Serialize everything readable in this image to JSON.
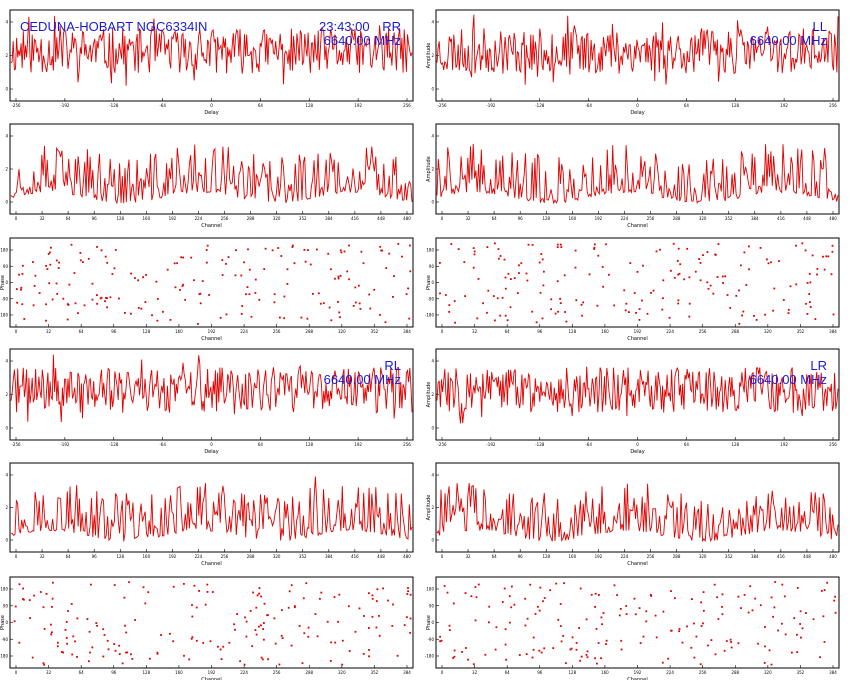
{
  "window": {
    "title_left": "CEDUNA-HOBART NGC6334IN",
    "time": "23:43:00"
  },
  "colors": {
    "trace": "#e00000",
    "annotation": "#1a1ad6",
    "axes": "#000000"
  },
  "chart_data": [
    {
      "id": "rr-delay",
      "type": "line",
      "pol": "RR",
      "freq": "6640.00 MHz",
      "xlabel": "Delay",
      "ylabel": "",
      "xticks": [
        "-256",
        "-192",
        "-128",
        "-64",
        "0",
        "64",
        "128",
        "192",
        "256"
      ],
      "yticks": [
        "4",
        "2",
        "0"
      ],
      "series": [
        {
          "seed": 11,
          "n": 360,
          "kind": "noise",
          "base": 0.55,
          "amp": 0.25
        }
      ]
    },
    {
      "id": "ll-delay",
      "type": "line",
      "pol": "LL",
      "freq": "6640.00 MHz",
      "xlabel": "Delay",
      "ylabel": "Amplitude",
      "xticks": [
        "-256",
        "-192",
        "-128",
        "-64",
        "0",
        "64",
        "128",
        "192",
        "256"
      ],
      "yticks": [
        "4",
        "2",
        "0"
      ],
      "series": [
        {
          "seed": 23,
          "n": 360,
          "kind": "noise",
          "base": 0.55,
          "amp": 0.25
        }
      ]
    },
    {
      "id": "rr-chan",
      "type": "line",
      "xlabel": "Channel",
      "ylabel": "",
      "xticks": [
        "0",
        "32",
        "64",
        "96",
        "128",
        "160",
        "192",
        "224",
        "256",
        "288",
        "320",
        "352",
        "384",
        "416",
        "448",
        "480"
      ],
      "yticks": [
        "4",
        "2",
        "0"
      ],
      "series": [
        {
          "seed": 37,
          "n": 300,
          "kind": "spiky",
          "base": 0.18,
          "amp": 0.55
        }
      ]
    },
    {
      "id": "ll-chan",
      "type": "line",
      "xlabel": "Channel",
      "ylabel": "Amplitude",
      "xticks": [
        "0",
        "32",
        "64",
        "96",
        "128",
        "160",
        "192",
        "224",
        "256",
        "288",
        "320",
        "352",
        "384",
        "416",
        "448",
        "480"
      ],
      "yticks": [
        "4",
        "2",
        "0"
      ],
      "series": [
        {
          "seed": 41,
          "n": 300,
          "kind": "spiky",
          "base": 0.18,
          "amp": 0.55
        }
      ]
    },
    {
      "id": "rr-phase",
      "type": "scatter",
      "xlabel": "Channel",
      "ylabel": "Phase",
      "xticks": [
        "0",
        "32",
        "64",
        "96",
        "128",
        "160",
        "192",
        "224",
        "256",
        "288",
        "320",
        "352",
        "384"
      ],
      "yticks": [
        "180",
        "90",
        "0",
        "-90",
        "-180"
      ],
      "series": [
        {
          "seed": 53,
          "n": 190,
          "kind": "dots"
        }
      ]
    },
    {
      "id": "ll-phase",
      "type": "scatter",
      "xlabel": "Channel",
      "ylabel": "Phase",
      "xticks": [
        "0",
        "32",
        "64",
        "96",
        "128",
        "160",
        "192",
        "224",
        "256",
        "288",
        "320",
        "352",
        "384"
      ],
      "yticks": [
        "180",
        "90",
        "0",
        "-90",
        "-180"
      ],
      "series": [
        {
          "seed": 67,
          "n": 190,
          "kind": "dots"
        }
      ]
    },
    {
      "id": "rl-delay",
      "type": "line",
      "pol": "RL",
      "freq": "6640.00 MHz",
      "xlabel": "Delay",
      "ylabel": "",
      "xticks": [
        "-256",
        "-192",
        "-128",
        "-64",
        "0",
        "64",
        "128",
        "192",
        "256"
      ],
      "yticks": [
        "4",
        "2",
        "0"
      ],
      "series": [
        {
          "seed": 71,
          "n": 360,
          "kind": "noise",
          "base": 0.55,
          "amp": 0.25
        }
      ]
    },
    {
      "id": "lr-delay",
      "type": "line",
      "pol": "LR",
      "freq": "6640.00 MHz",
      "xlabel": "Delay",
      "ylabel": "Amplitude",
      "xticks": [
        "-256",
        "-192",
        "-128",
        "-64",
        "0",
        "64",
        "128",
        "192",
        "256"
      ],
      "yticks": [
        "4",
        "2",
        "0"
      ],
      "series": [
        {
          "seed": 83,
          "n": 360,
          "kind": "noise",
          "base": 0.55,
          "amp": 0.25
        }
      ]
    },
    {
      "id": "rl-chan",
      "type": "line",
      "xlabel": "Channel",
      "ylabel": "",
      "xticks": [
        "0",
        "32",
        "64",
        "96",
        "128",
        "160",
        "192",
        "224",
        "256",
        "288",
        "320",
        "352",
        "384",
        "416",
        "448",
        "480"
      ],
      "yticks": [
        "4",
        "2",
        "0"
      ],
      "series": [
        {
          "seed": 97,
          "n": 300,
          "kind": "spiky",
          "base": 0.18,
          "amp": 0.55
        }
      ]
    },
    {
      "id": "lr-chan",
      "type": "line",
      "xlabel": "Channel",
      "ylabel": "Amplitude",
      "xticks": [
        "0",
        "32",
        "64",
        "96",
        "128",
        "160",
        "192",
        "224",
        "256",
        "288",
        "320",
        "352",
        "384",
        "416",
        "448",
        "480"
      ],
      "yticks": [
        "4",
        "2",
        "0"
      ],
      "series": [
        {
          "seed": 103,
          "n": 300,
          "kind": "spiky",
          "base": 0.18,
          "amp": 0.55
        }
      ]
    },
    {
      "id": "rl-phase",
      "type": "scatter",
      "xlabel": "Channel",
      "ylabel": "Phase",
      "xticks": [
        "0",
        "32",
        "64",
        "96",
        "128",
        "160",
        "192",
        "224",
        "256",
        "288",
        "320",
        "352",
        "384"
      ],
      "yticks": [
        "180",
        "90",
        "0",
        "-90",
        "-180"
      ],
      "series": [
        {
          "seed": 113,
          "n": 190,
          "kind": "dots"
        }
      ]
    },
    {
      "id": "lr-phase",
      "type": "scatter",
      "xlabel": "Channel",
      "ylabel": "Phase",
      "xticks": [
        "0",
        "32",
        "64",
        "96",
        "128",
        "160",
        "192",
        "224",
        "256",
        "288",
        "320",
        "352",
        "384"
      ],
      "yticks": [
        "180",
        "90",
        "0",
        "-90",
        "-180"
      ],
      "series": [
        {
          "seed": 127,
          "n": 190,
          "kind": "dots"
        }
      ]
    }
  ]
}
